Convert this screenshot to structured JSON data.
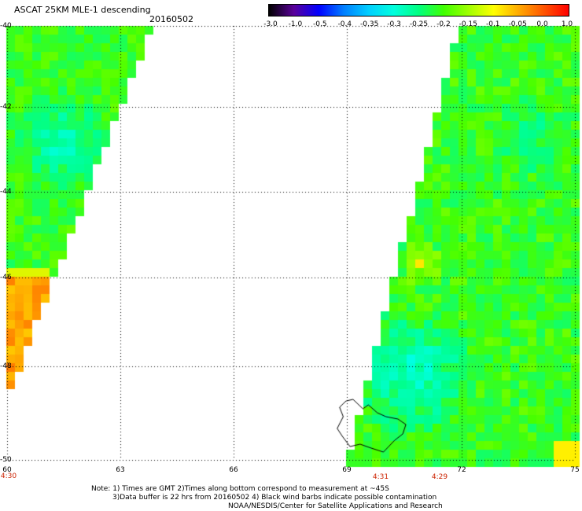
{
  "header": {
    "title": "ASCAT 25KM MLE-1 descending",
    "date": "20160502"
  },
  "colorbar": {
    "labels": [
      "-3.0",
      "-1.0",
      "-0.5",
      "-0.4",
      "-0.35",
      "-0.3",
      "-0.25",
      "-0.2",
      "-0.15",
      "-0.1",
      "-0.05",
      "0.0",
      "1.0"
    ],
    "colors": [
      "#000000",
      "#5a009a",
      "#0000ff",
      "#007fff",
      "#00cfff",
      "#00ffdd",
      "#00ff80",
      "#40ff00",
      "#a0ff00",
      "#ffff00",
      "#ffaa00",
      "#ff5500",
      "#ff0000"
    ]
  },
  "axes": {
    "y_labels": [
      "-40",
      "-42",
      "-44",
      "-46",
      "-48",
      "-50"
    ],
    "x_labels": [
      "60",
      "63",
      "66",
      "69",
      "72",
      "75"
    ],
    "x_range": [
      60,
      75
    ],
    "y_range": [
      -50,
      -40
    ],
    "grid": "dotted"
  },
  "time_labels": [
    "4:30",
    "4:31",
    "4:29"
  ],
  "notes": {
    "line1": "Note: 1) Times are GMT 2)Times along bottom correspond to measurement at ~45S",
    "line2": "3)Data buffer is 22 hrs from 20160502 4) Black wind barbs indicate possible contamination",
    "line3": "NOAA/NESDIS/Center for Satellite Applications and Research"
  }
}
